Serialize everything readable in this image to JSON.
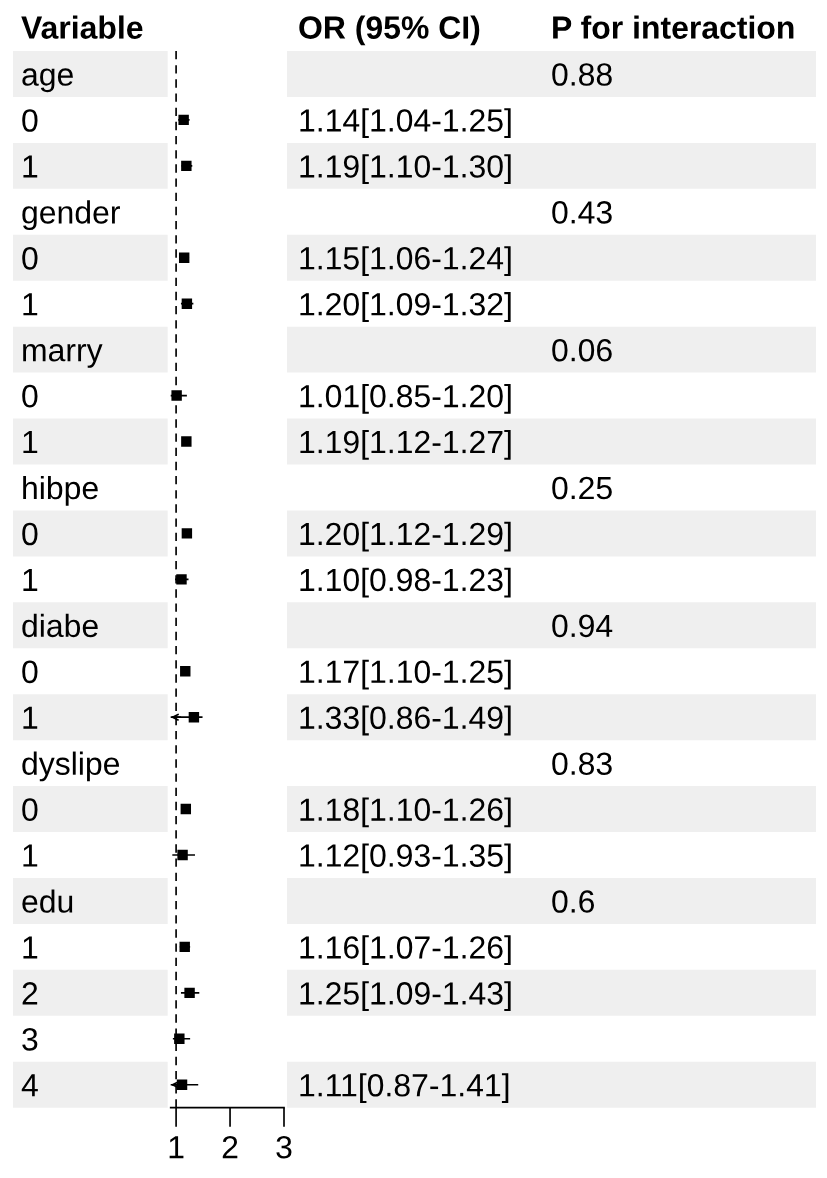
{
  "chart_data": {
    "type": "scatter",
    "orientation": "horizontal",
    "ylabel": "Variable",
    "categories": [
      "age",
      "0",
      "1",
      "gender",
      "0",
      "1",
      "marry",
      "0",
      "1",
      "hibpe",
      "0",
      "1",
      "diabe",
      "0",
      "1",
      "dyslipe",
      "0",
      "1",
      "edu",
      "1",
      "2",
      "3",
      "4"
    ],
    "values": [
      null,
      1.14,
      1.19,
      null,
      1.15,
      1.2,
      null,
      1.01,
      1.19,
      null,
      1.2,
      1.1,
      null,
      1.17,
      1.33,
      null,
      1.18,
      1.12,
      null,
      1.16,
      1.25,
      1.06,
      1.11
    ],
    "errors": [
      null,
      [
        1.04,
        1.25
      ],
      [
        1.1,
        1.3
      ],
      null,
      [
        1.06,
        1.24
      ],
      [
        1.09,
        1.32
      ],
      null,
      [
        0.85,
        1.2
      ],
      [
        1.12,
        1.27
      ],
      null,
      [
        1.12,
        1.29
      ],
      [
        0.98,
        1.23
      ],
      null,
      [
        1.1,
        1.25
      ],
      [
        0.86,
        1.49
      ],
      null,
      [
        1.1,
        1.26
      ],
      [
        0.93,
        1.35
      ],
      null,
      [
        1.07,
        1.26
      ],
      [
        1.09,
        1.43
      ],
      [
        0.94,
        1.26
      ],
      [
        0.87,
        1.41
      ]
    ],
    "value_labels": [
      null,
      "1.14[1.04-1.25]",
      "1.19[1.10-1.30]",
      null,
      "1.15[1.06-1.24]",
      "1.20[1.09-1.32]",
      null,
      "1.01[0.85-1.20]",
      "1.19[1.12-1.27]",
      null,
      "1.20[1.12-1.29]",
      "1.10[0.98-1.23]",
      null,
      "1.17[1.10-1.25]",
      "1.33[0.86-1.49]",
      null,
      "1.18[1.10-1.26]",
      "1.12[0.93-1.35]",
      null,
      "1.16[1.07-1.26]",
      "1.25[1.09-1.43]",
      null,
      "1.11[0.87-1.41]"
    ],
    "annotations": [
      "OR (95% CI)",
      "P for interaction",
      "0.88",
      "0.43",
      "0.06",
      "0.25",
      "0.94",
      "0.83",
      "0.6"
    ],
    "color": "#000000",
    "marker": "square",
    "xlim": [
      0.9,
      3
    ],
    "xticks": [
      1,
      2,
      3
    ],
    "ref_lines": [
      {
        "axis": "x",
        "value": 1,
        "color": "#000000",
        "line_style": "dashed"
      }
    ],
    "grid": false,
    "legend": false
  }
}
